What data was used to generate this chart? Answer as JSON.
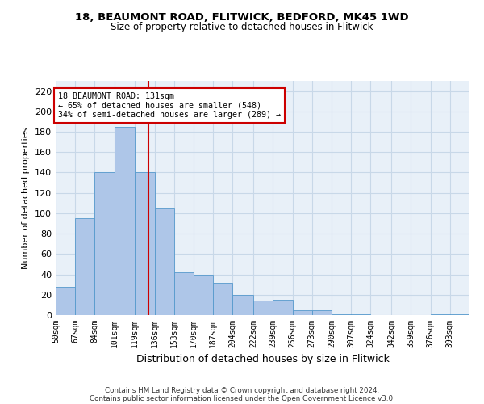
{
  "title1": "18, BEAUMONT ROAD, FLITWICK, BEDFORD, MK45 1WD",
  "title2": "Size of property relative to detached houses in Flitwick",
  "xlabel": "Distribution of detached houses by size in Flitwick",
  "ylabel": "Number of detached properties",
  "bin_labels": [
    "50sqm",
    "67sqm",
    "84sqm",
    "101sqm",
    "119sqm",
    "136sqm",
    "153sqm",
    "170sqm",
    "187sqm",
    "204sqm",
    "222sqm",
    "239sqm",
    "256sqm",
    "273sqm",
    "290sqm",
    "307sqm",
    "324sqm",
    "342sqm",
    "359sqm",
    "376sqm",
    "393sqm"
  ],
  "bar_heights": [
    28,
    95,
    140,
    185,
    140,
    105,
    42,
    40,
    32,
    20,
    14,
    15,
    5,
    5,
    1,
    1,
    0,
    0,
    0,
    1,
    1
  ],
  "bar_color": "#aec6e8",
  "bar_edge_color": "#5599cc",
  "bin_edges": [
    50,
    67,
    84,
    101,
    119,
    136,
    153,
    170,
    187,
    204,
    222,
    239,
    256,
    273,
    290,
    307,
    324,
    342,
    359,
    376,
    393,
    410
  ],
  "annotation_text": "18 BEAUMONT ROAD: 131sqm\n← 65% of detached houses are smaller (548)\n34% of semi-detached houses are larger (289) →",
  "annotation_box_color": "#ffffff",
  "annotation_box_edge": "#cc0000",
  "vline_color": "#cc0000",
  "vline_x": 131,
  "grid_color": "#c8d8e8",
  "background_color": "#e8f0f8",
  "footer_line1": "Contains HM Land Registry data © Crown copyright and database right 2024.",
  "footer_line2": "Contains public sector information licensed under the Open Government Licence v3.0.",
  "ylim": [
    0,
    230
  ],
  "yticks": [
    0,
    20,
    40,
    60,
    80,
    100,
    120,
    140,
    160,
    180,
    200,
    220
  ],
  "figsize": [
    6.0,
    5.0
  ],
  "dpi": 100
}
